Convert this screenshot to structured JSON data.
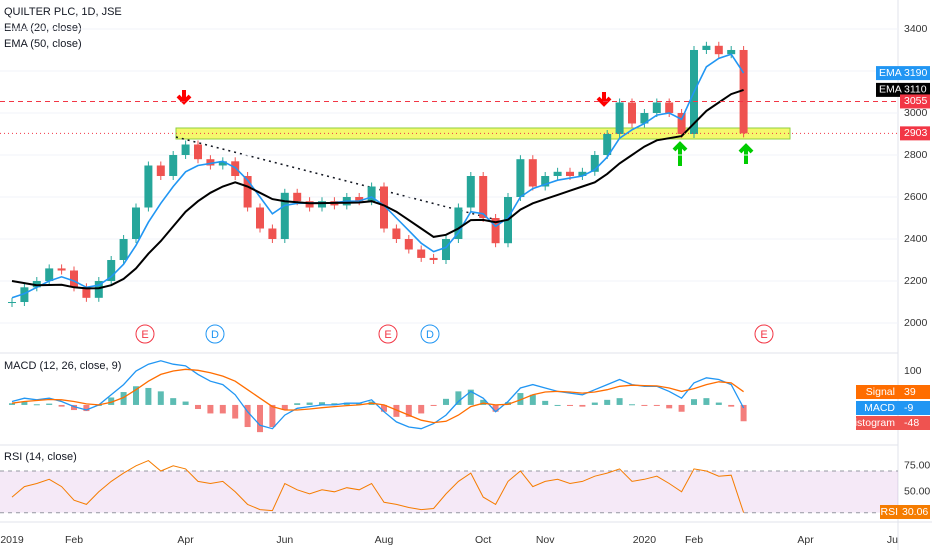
{
  "chart_data": [
    {
      "type": "candlestick",
      "title": "QUILTER PLC, 1D, JSE",
      "categories": [
        "2019",
        null,
        null,
        null,
        null,
        "Feb",
        null,
        null,
        null,
        null,
        null,
        null,
        null,
        null,
        "Apr",
        null,
        null,
        null,
        null,
        null,
        null,
        null,
        "Jun",
        null,
        null,
        null,
        null,
        null,
        null,
        null,
        "Aug",
        null,
        null,
        null,
        null,
        null,
        null,
        null,
        "Oct",
        null,
        null,
        null,
        null,
        "Nov",
        null,
        null,
        null,
        null,
        null,
        null,
        null,
        "2020",
        null,
        null,
        null,
        "Feb",
        null,
        null,
        null,
        null,
        null,
        null,
        null,
        null,
        "Apr",
        null,
        null,
        null,
        null,
        null,
        null,
        "Ju"
      ],
      "series": [
        {
          "color_up": "#26a69a",
          "color_down": "#ef5350",
          "values": [
            2100,
            2170,
            2200,
            2260,
            2250,
            2170,
            2120,
            2200,
            2300,
            2400,
            2550,
            2750,
            2700,
            2800,
            2850,
            2780,
            2750,
            2770,
            2700,
            2550,
            2450,
            2400,
            2620,
            2580,
            2550,
            2580,
            2560,
            2600,
            2580,
            2650,
            2450,
            2400,
            2350,
            2310,
            2300,
            2400,
            2550,
            2700,
            2500,
            2380,
            2600,
            2780,
            2650,
            2700,
            2720,
            2700,
            2720,
            2800,
            2900,
            3050,
            2950,
            3000,
            3050,
            3000,
            2900,
            3300,
            3320,
            3280,
            3300,
            2903,
            null,
            null,
            null,
            null,
            null,
            null,
            null,
            null,
            null,
            null,
            null,
            null
          ]
        },
        {
          "name": "EMA (20, close)",
          "color": "#2196f3",
          "values": [
            2120,
            2140,
            2170,
            2200,
            2220,
            2200,
            2170,
            2180,
            2220,
            2280,
            2370,
            2480,
            2570,
            2650,
            2720,
            2750,
            2760,
            2770,
            2740,
            2680,
            2600,
            2520,
            2560,
            2570,
            2571,
            2572,
            2573,
            2580,
            2581,
            2600,
            2560,
            2500,
            2440,
            2380,
            2340,
            2360,
            2430,
            2530,
            2520,
            2460,
            2500,
            2600,
            2640,
            2660,
            2680,
            2690,
            2700,
            2730,
            2790,
            2880,
            2920,
            2950,
            2990,
            3000,
            2970,
            3100,
            3220,
            3260,
            3280,
            3190,
            null,
            null,
            null,
            null,
            null,
            null,
            null,
            null,
            null,
            null,
            null,
            null
          ]
        },
        {
          "name": "EMA (50, close)",
          "color": "#000000",
          "values": [
            2200,
            2190,
            2180,
            2181,
            2182,
            2170,
            2165,
            2166,
            2180,
            2210,
            2260,
            2330,
            2390,
            2460,
            2530,
            2580,
            2620,
            2650,
            2670,
            2650,
            2620,
            2590,
            2580,
            2575,
            2570,
            2571,
            2572,
            2573,
            2574,
            2580,
            2560,
            2530,
            2490,
            2450,
            2410,
            2420,
            2450,
            2490,
            2491,
            2480,
            2492,
            2540,
            2570,
            2590,
            2610,
            2630,
            2650,
            2670,
            2710,
            2760,
            2800,
            2840,
            2870,
            2880,
            2890,
            2950,
            3010,
            3050,
            3090,
            3110,
            null,
            null,
            null,
            null,
            null,
            null,
            null,
            null,
            null,
            null,
            null,
            null
          ]
        }
      ],
      "price_labels": [
        {
          "name": "EMA",
          "value": 3190,
          "color": "#2196f3"
        },
        {
          "name": "EMA",
          "value": 3110,
          "color": "#000000"
        },
        {
          "value": 3055,
          "color": "#f23645",
          "line": "dashed"
        },
        {
          "value": 2903,
          "color": "#f23645",
          "line": "dotted"
        }
      ],
      "events": [
        "E",
        "D",
        "E",
        "D",
        "E"
      ],
      "ylim": [
        1862,
        3538
      ],
      "yticks": [
        2000,
        2200,
        2400,
        2600,
        2800,
        3000,
        3200,
        3400
      ],
      "grid": true
    },
    {
      "type": "macd",
      "title": "MACD (12, 26, close, 9)",
      "series": [
        {
          "name": "Histogram",
          "color_up": "#26a69a",
          "color_down": "#ef5350",
          "values": [
            5,
            10,
            2,
            4,
            -5,
            -15,
            -18,
            0,
            22,
            38,
            55,
            50,
            40,
            20,
            10,
            -12,
            -25,
            -25,
            -40,
            -65,
            -80,
            -65,
            -15,
            5,
            7,
            8,
            5,
            7,
            5,
            10,
            -20,
            -35,
            -35,
            -25,
            -3,
            18,
            40,
            45,
            15,
            -20,
            8,
            35,
            30,
            12,
            0,
            -3,
            -5,
            7,
            15,
            20,
            2,
            -2,
            -1,
            -10,
            -20,
            17,
            20,
            7,
            -5,
            -48
          ]
        },
        {
          "name": "MACD",
          "color": "#2196f3",
          "values": [
            10,
            20,
            15,
            20,
            10,
            -5,
            -15,
            0,
            30,
            60,
            100,
            120,
            130,
            120,
            115,
            90,
            70,
            60,
            30,
            -20,
            -60,
            -70,
            -30,
            -10,
            -5,
            0,
            0,
            5,
            5,
            15,
            -20,
            -50,
            -65,
            -70,
            -55,
            -30,
            10,
            40,
            20,
            -20,
            10,
            50,
            60,
            50,
            40,
            35,
            30,
            45,
            60,
            75,
            60,
            55,
            55,
            40,
            20,
            65,
            80,
            75,
            60,
            -9
          ]
        },
        {
          "name": "Signal",
          "color": "#ff6d00",
          "values": [
            5,
            10,
            13,
            16,
            15,
            10,
            3,
            0,
            8,
            22,
            45,
            70,
            90,
            100,
            105,
            102,
            95,
            85,
            70,
            45,
            20,
            -5,
            -15,
            -15,
            -12,
            -8,
            -5,
            -2,
            0,
            5,
            0,
            -15,
            -30,
            -45,
            -52,
            -48,
            -30,
            -5,
            5,
            0,
            2,
            15,
            30,
            38,
            40,
            38,
            35,
            38,
            45,
            55,
            58,
            57,
            56,
            50,
            40,
            48,
            60,
            68,
            65,
            39
          ]
        }
      ],
      "ylim": [
        -112,
        147
      ],
      "yticks": [
        100
      ]
    },
    {
      "type": "rsi",
      "title": "RSI (14, close)",
      "series": [
        {
          "name": "RSI",
          "color": "#f57c00",
          "values": [
            45,
            55,
            58,
            62,
            55,
            42,
            38,
            50,
            60,
            68,
            75,
            80,
            70,
            75,
            72,
            60,
            58,
            60,
            50,
            38,
            33,
            32,
            58,
            52,
            48,
            52,
            50,
            54,
            52,
            58,
            40,
            38,
            35,
            33,
            34,
            48,
            60,
            68,
            45,
            38,
            60,
            70,
            55,
            60,
            62,
            58,
            60,
            65,
            68,
            72,
            60,
            62,
            65,
            58,
            50,
            72,
            70,
            65,
            66,
            30.06
          ]
        }
      ],
      "band": [
        30,
        70
      ],
      "ylim": [
        23,
        93
      ],
      "yticks": [
        {
          "value": 75,
          "label": "75.00"
        },
        {
          "value": 50,
          "label": "50.00"
        }
      ]
    }
  ]
}
